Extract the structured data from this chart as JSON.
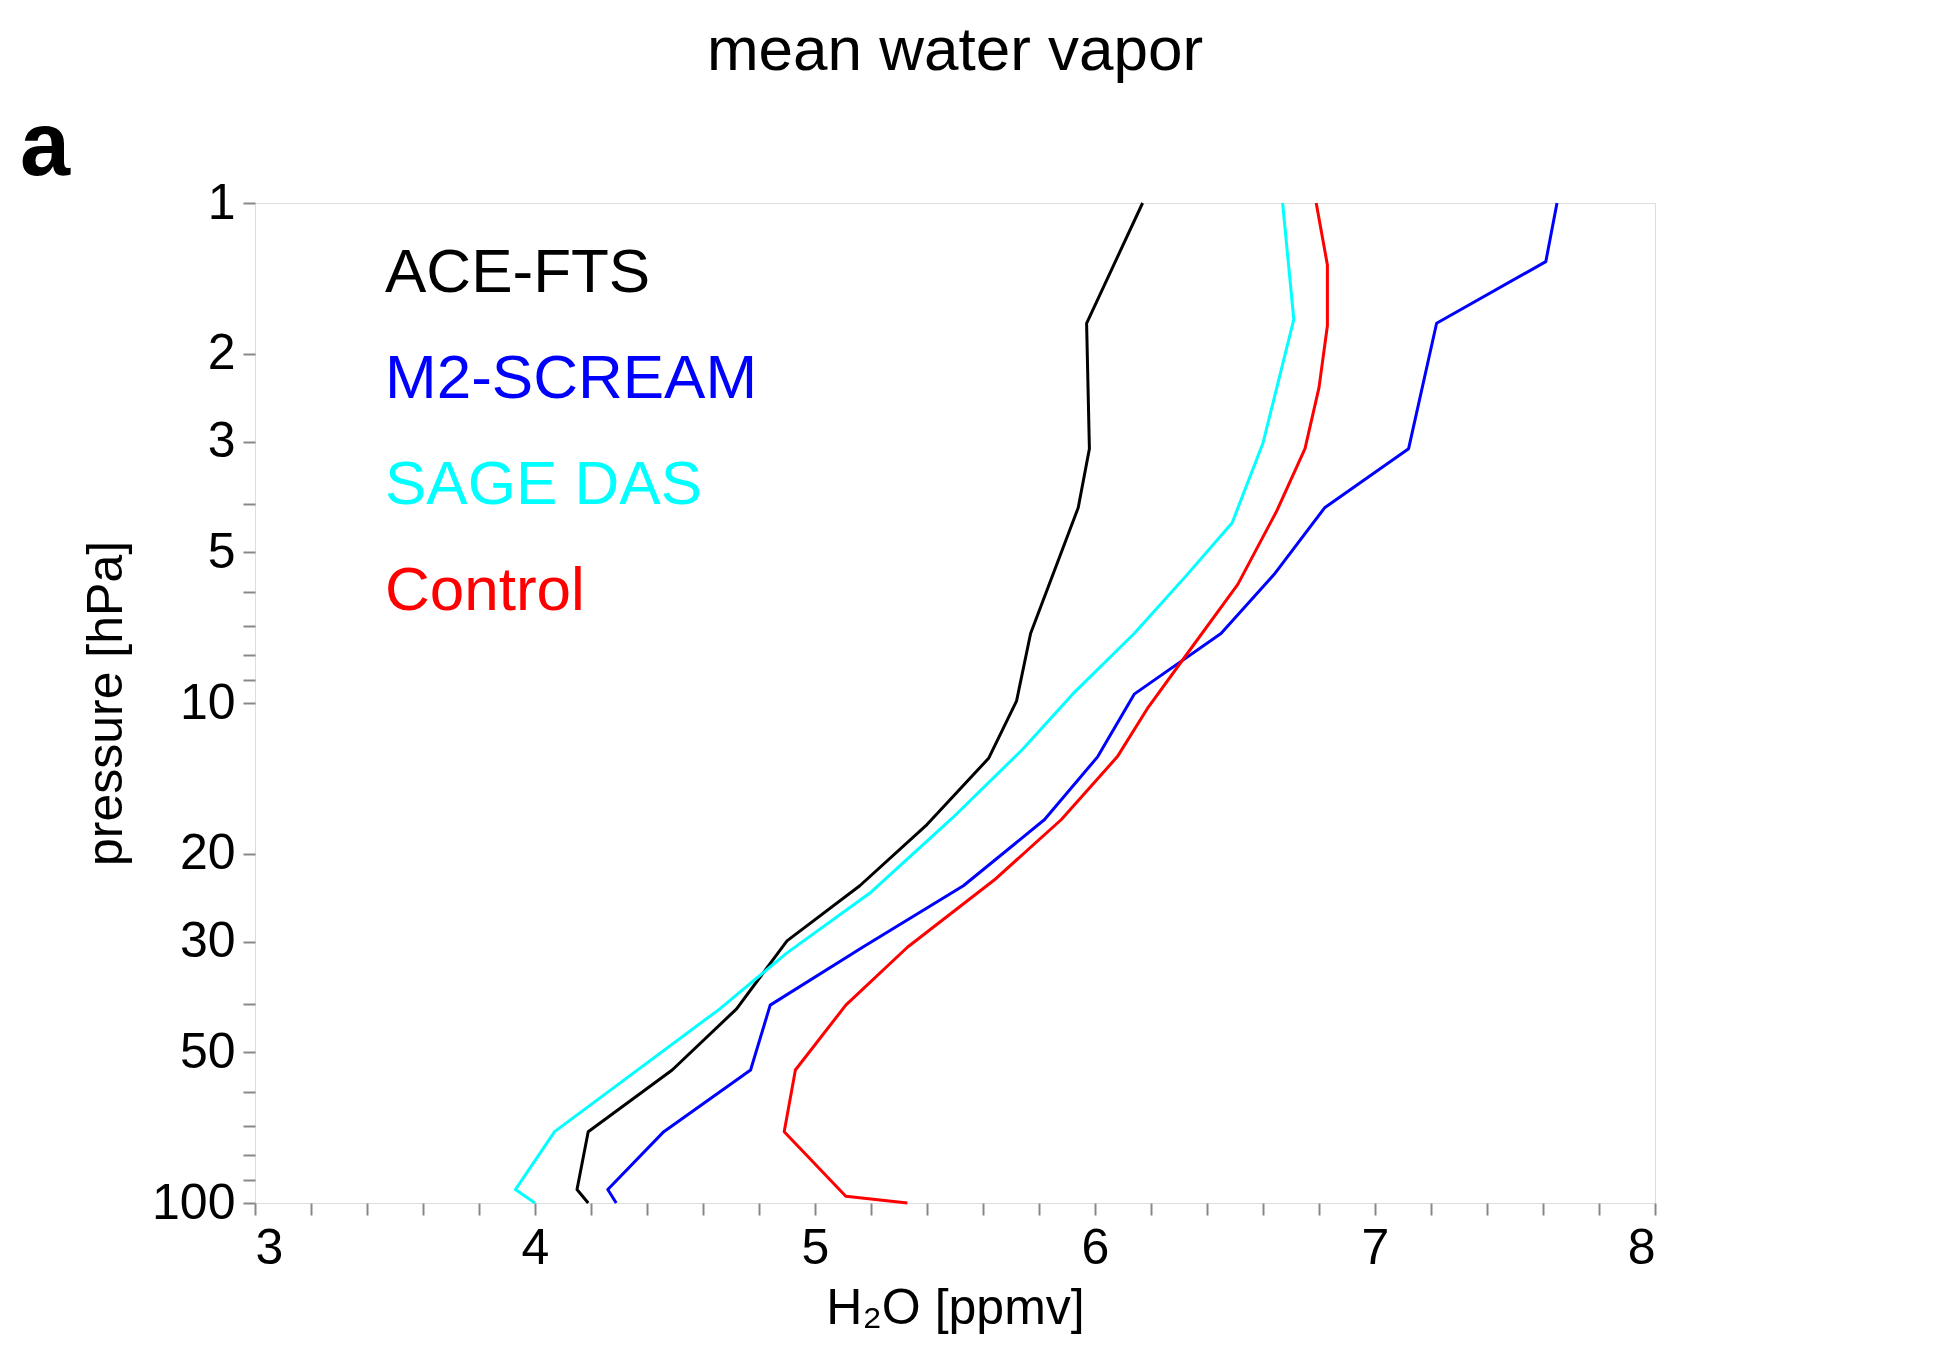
{
  "chart_data": {
    "type": "line",
    "title": "mean water vapor",
    "xlabel": "H₂O [ppmv]",
    "ylabel": "pressure [hPa]",
    "annotations": [
      "a"
    ],
    "log": "y",
    "grid": false,
    "legend": "top left",
    "marker": "none",
    "line_style": "solid",
    "xlim": [
      3,
      8
    ],
    "xticks": [
      3,
      {
        "value": 3.2,
        "label": null
      },
      {
        "value": 3.4,
        "label": null
      },
      {
        "value": 3.6,
        "label": null
      },
      {
        "value": 3.8,
        "label": null
      },
      4,
      {
        "value": 4.2,
        "label": null
      },
      {
        "value": 4.4,
        "label": null
      },
      {
        "value": 4.6,
        "label": null
      },
      {
        "value": 4.8,
        "label": null
      },
      5,
      {
        "value": 5.2,
        "label": null
      },
      {
        "value": 5.4,
        "label": null
      },
      {
        "value": 5.6,
        "label": null
      },
      {
        "value": 5.8,
        "label": null
      },
      6,
      {
        "value": 6.2,
        "label": null
      },
      {
        "value": 6.4,
        "label": null
      },
      {
        "value": 6.6,
        "label": null
      },
      {
        "value": 6.8,
        "label": null
      },
      7,
      {
        "value": 7.2,
        "label": null
      },
      {
        "value": 7.4,
        "label": null
      },
      {
        "value": 7.6,
        "label": null
      },
      {
        "value": 7.8,
        "label": null
      },
      8
    ],
    "ylim": [
      100,
      1
    ],
    "yticks": [
      1,
      2,
      3,
      {
        "value": 4,
        "label": null
      },
      5,
      {
        "value": 6,
        "label": null
      },
      {
        "value": 7,
        "label": null
      },
      {
        "value": 8,
        "label": null
      },
      {
        "value": 9,
        "label": null
      },
      10,
      20,
      30,
      {
        "value": 40,
        "label": null
      },
      50,
      {
        "value": 60,
        "label": null
      },
      {
        "value": 70,
        "label": null
      },
      {
        "value": 80,
        "label": null
      },
      {
        "value": 90,
        "label": null
      },
      100
    ],
    "series": [
      {
        "name": "ACE-FTS",
        "color": "#000000",
        "x": [
          6.17,
          5.97,
          5.98,
          5.94,
          5.77,
          5.72,
          5.62,
          5.4,
          5.16,
          4.9,
          4.72,
          4.49,
          4.19,
          4.15,
          4.19
        ],
        "values": [
          1,
          1.74,
          3.1,
          4.07,
          7.26,
          9.9,
          12.9,
          17.5,
          23.2,
          29.9,
          40.9,
          54.2,
          72,
          94,
          100
        ]
      },
      {
        "name": "M2-SCREAM",
        "color": "#0000ff",
        "x": [
          7.65,
          7.61,
          7.22,
          7.12,
          6.82,
          6.64,
          6.45,
          6.14,
          6.01,
          5.82,
          5.53,
          5.17,
          4.84,
          4.77,
          4.46,
          4.26,
          4.29
        ],
        "values": [
          1,
          1.31,
          1.74,
          3.1,
          4.07,
          5.53,
          7.26,
          9.6,
          12.8,
          17.1,
          23.2,
          30.8,
          40.2,
          54.2,
          72,
          94,
          100
        ]
      },
      {
        "name": "SAGE DAS",
        "color": "#00ffff",
        "x": [
          6.67,
          6.71,
          6.6,
          6.49,
          6.33,
          6.14,
          5.92,
          5.74,
          5.49,
          5.2,
          4.9,
          4.66,
          4.07,
          3.93,
          4.0
        ],
        "values": [
          1,
          1.71,
          3.02,
          4.36,
          5.53,
          7.26,
          9.6,
          12.4,
          17.0,
          23.9,
          31.6,
          40.9,
          72,
          94,
          100
        ]
      },
      {
        "name": "Control",
        "color": "#ff0000",
        "x": [
          6.79,
          6.83,
          6.83,
          6.8,
          6.75,
          6.65,
          6.51,
          6.32,
          6.19,
          6.08,
          5.88,
          5.64,
          5.33,
          5.11,
          4.93,
          4.89,
          5.11,
          5.33
        ],
        "values": [
          1,
          1.33,
          1.76,
          2.34,
          3.1,
          4.12,
          5.79,
          8.1,
          10.2,
          12.8,
          17.1,
          22.6,
          30.8,
          40.2,
          54.2,
          72,
          96.9,
          100
        ]
      }
    ]
  }
}
